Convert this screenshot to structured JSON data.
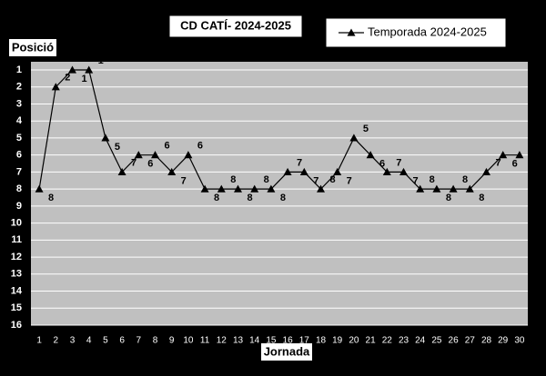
{
  "chart_data": {
    "type": "line",
    "title": "CD CATÍ- 2024-2025",
    "y_label": "Posició",
    "x_label": "Jornada",
    "categories": [
      "1",
      "2",
      "3",
      "4",
      "5",
      "6",
      "7",
      "8",
      "9",
      "10",
      "11",
      "12",
      "13",
      "14",
      "15",
      "16",
      "17",
      "18",
      "19",
      "20",
      "21",
      "22",
      "23",
      "24",
      "25",
      "26",
      "27",
      "28",
      "29",
      "30"
    ],
    "series": [
      {
        "name": "Temporada 2024-2025",
        "color": "#000000",
        "values": [
          8,
          2,
          1,
          1,
          5,
          7,
          6,
          6,
          7,
          6,
          8,
          8,
          8,
          8,
          8,
          7,
          7,
          8,
          7,
          5,
          6,
          7,
          7,
          8,
          8,
          8,
          8,
          7,
          6,
          6
        ]
      }
    ],
    "ylim": [
      1,
      16
    ],
    "yticks": [
      1,
      2,
      3,
      4,
      5,
      6,
      7,
      8,
      9,
      10,
      11,
      12,
      13,
      14,
      15,
      16
    ],
    "y_reversed": true,
    "grid": true,
    "legend": "top-right",
    "plot_color": "#c0c0c0",
    "grid_color": "#ffffff"
  }
}
